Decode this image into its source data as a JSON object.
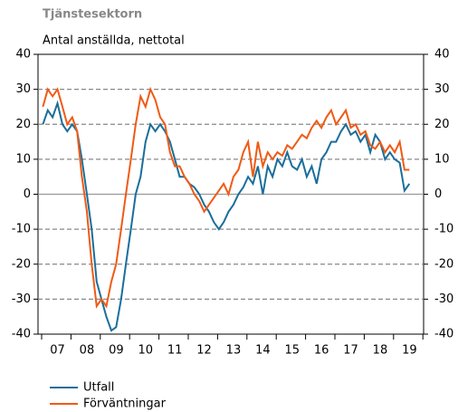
{
  "chart_data": {
    "type": "line",
    "title": "Tjänstesektorn",
    "subtitle": "Antal anställda, nettotal",
    "categories": [
      null,
      null,
      null,
      "07",
      null,
      null,
      null,
      null,
      null,
      "08",
      null,
      null,
      null,
      null,
      null,
      "09",
      null,
      null,
      null,
      null,
      null,
      "10",
      null,
      null,
      null,
      null,
      null,
      "11",
      null,
      null,
      null,
      null,
      null,
      "12",
      null,
      null,
      null,
      null,
      null,
      "13",
      null,
      null,
      null,
      null,
      null,
      "14",
      null,
      null,
      null,
      null,
      null,
      "15",
      null,
      null,
      null,
      null,
      null,
      "16",
      null,
      null,
      null,
      null,
      null,
      "17",
      null,
      null,
      null,
      null,
      null,
      "18",
      null,
      null,
      null,
      null,
      null,
      "19"
    ],
    "series": [
      {
        "name": "Utfall",
        "color": "#1a6e9a",
        "values": [
          20,
          24,
          22,
          26,
          20,
          18,
          20,
          18,
          10,
          0,
          -10,
          -25,
          -30,
          -35,
          -39,
          -38,
          -30,
          -20,
          -10,
          0,
          5,
          15,
          20,
          18,
          20,
          18,
          15,
          10,
          5,
          5,
          3,
          2,
          0,
          -3,
          -5,
          -8,
          -10,
          -8,
          -5,
          -3,
          0,
          2,
          5,
          3,
          8,
          0,
          8,
          5,
          10,
          8,
          12,
          8,
          7,
          10,
          5,
          8,
          3,
          10,
          12,
          15,
          15,
          18,
          20,
          17,
          18,
          15,
          17,
          12,
          17,
          15,
          10,
          12,
          10,
          9,
          1,
          3
        ]
      },
      {
        "name": "Förväntningar",
        "color": "#f05a14",
        "values": [
          25,
          30,
          28,
          30,
          25,
          20,
          22,
          18,
          5,
          -5,
          -20,
          -32,
          -30,
          -32,
          -25,
          -20,
          -10,
          0,
          10,
          20,
          28,
          25,
          30,
          27,
          22,
          20,
          12,
          8,
          8,
          5,
          3,
          0,
          -2,
          -5,
          -3,
          -1,
          1,
          3,
          0,
          5,
          7,
          12,
          15,
          5,
          15,
          8,
          12,
          10,
          12,
          11,
          14,
          13,
          15,
          17,
          16,
          19,
          21,
          19,
          22,
          24,
          20,
          22,
          24,
          19,
          20,
          17,
          18,
          14,
          13,
          15,
          12,
          14,
          12,
          15,
          7,
          7
        ]
      }
    ],
    "ylim": [
      -40,
      40
    ],
    "yticks": [
      -40,
      -30,
      -20,
      -10,
      0,
      10,
      20,
      30,
      40
    ],
    "y2lim": [
      -40,
      40
    ],
    "y2ticks": [
      -40,
      -30,
      -20,
      -10,
      0,
      10,
      20,
      30,
      40
    ],
    "grid": true
  }
}
